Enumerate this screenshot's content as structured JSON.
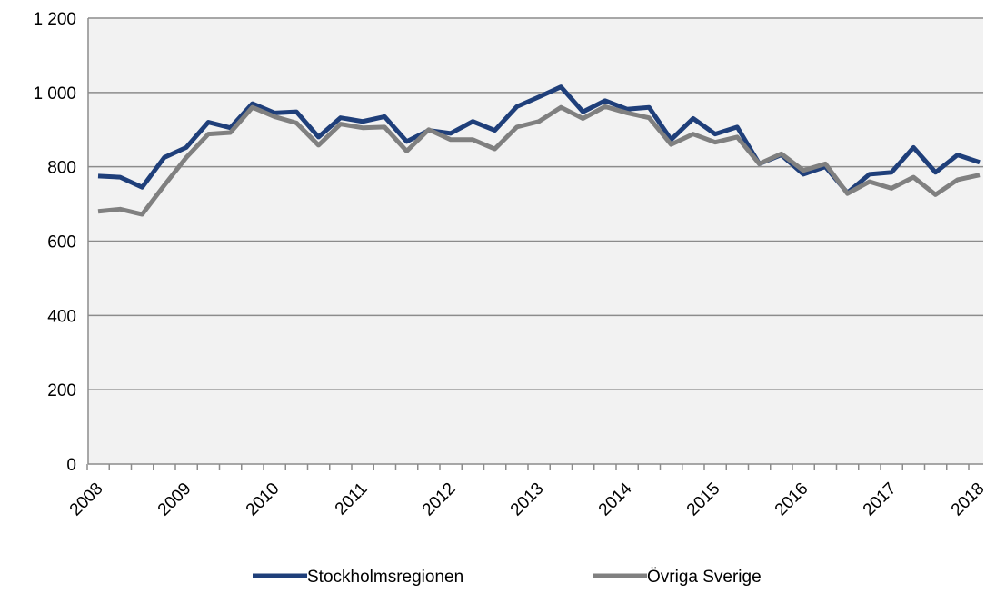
{
  "chart_data": {
    "type": "line",
    "categories": [
      "2008",
      null,
      null,
      null,
      "2009",
      null,
      null,
      null,
      "2010",
      null,
      null,
      null,
      "2011",
      null,
      null,
      null,
      "2012",
      null,
      null,
      null,
      "2013",
      null,
      null,
      null,
      "2014",
      null,
      null,
      null,
      "2015",
      null,
      null,
      null,
      "2016",
      null,
      null,
      null,
      "2017",
      null,
      null,
      null,
      "2018"
    ],
    "series": [
      {
        "name": "Stockholmsregionen",
        "color": "#1f3f7a",
        "values": [
          775,
          772,
          745,
          825,
          852,
          920,
          905,
          970,
          945,
          948,
          880,
          932,
          922,
          935,
          868,
          898,
          890,
          922,
          898,
          962,
          988,
          1015,
          948,
          978,
          955,
          960,
          873,
          930,
          888,
          907,
          808,
          832,
          780,
          800,
          730,
          780,
          785,
          852,
          785,
          832,
          812
        ]
      },
      {
        "name": "Övriga Sverige",
        "color": "#808080",
        "values": [
          680,
          686,
          672,
          750,
          825,
          888,
          892,
          960,
          935,
          918,
          858,
          915,
          905,
          907,
          842,
          900,
          873,
          873,
          848,
          907,
          922,
          960,
          930,
          962,
          945,
          932,
          860,
          888,
          866,
          880,
          808,
          835,
          790,
          808,
          728,
          760,
          742,
          772,
          725,
          765,
          778
        ]
      }
    ],
    "ylim": [
      0,
      1200
    ],
    "yticks": [
      0,
      200,
      400,
      600,
      800,
      {
        "value": 1000,
        "label": "1 000"
      },
      {
        "value": 1200,
        "label": "1 200"
      }
    ],
    "grid": true,
    "legend": "bottom"
  }
}
